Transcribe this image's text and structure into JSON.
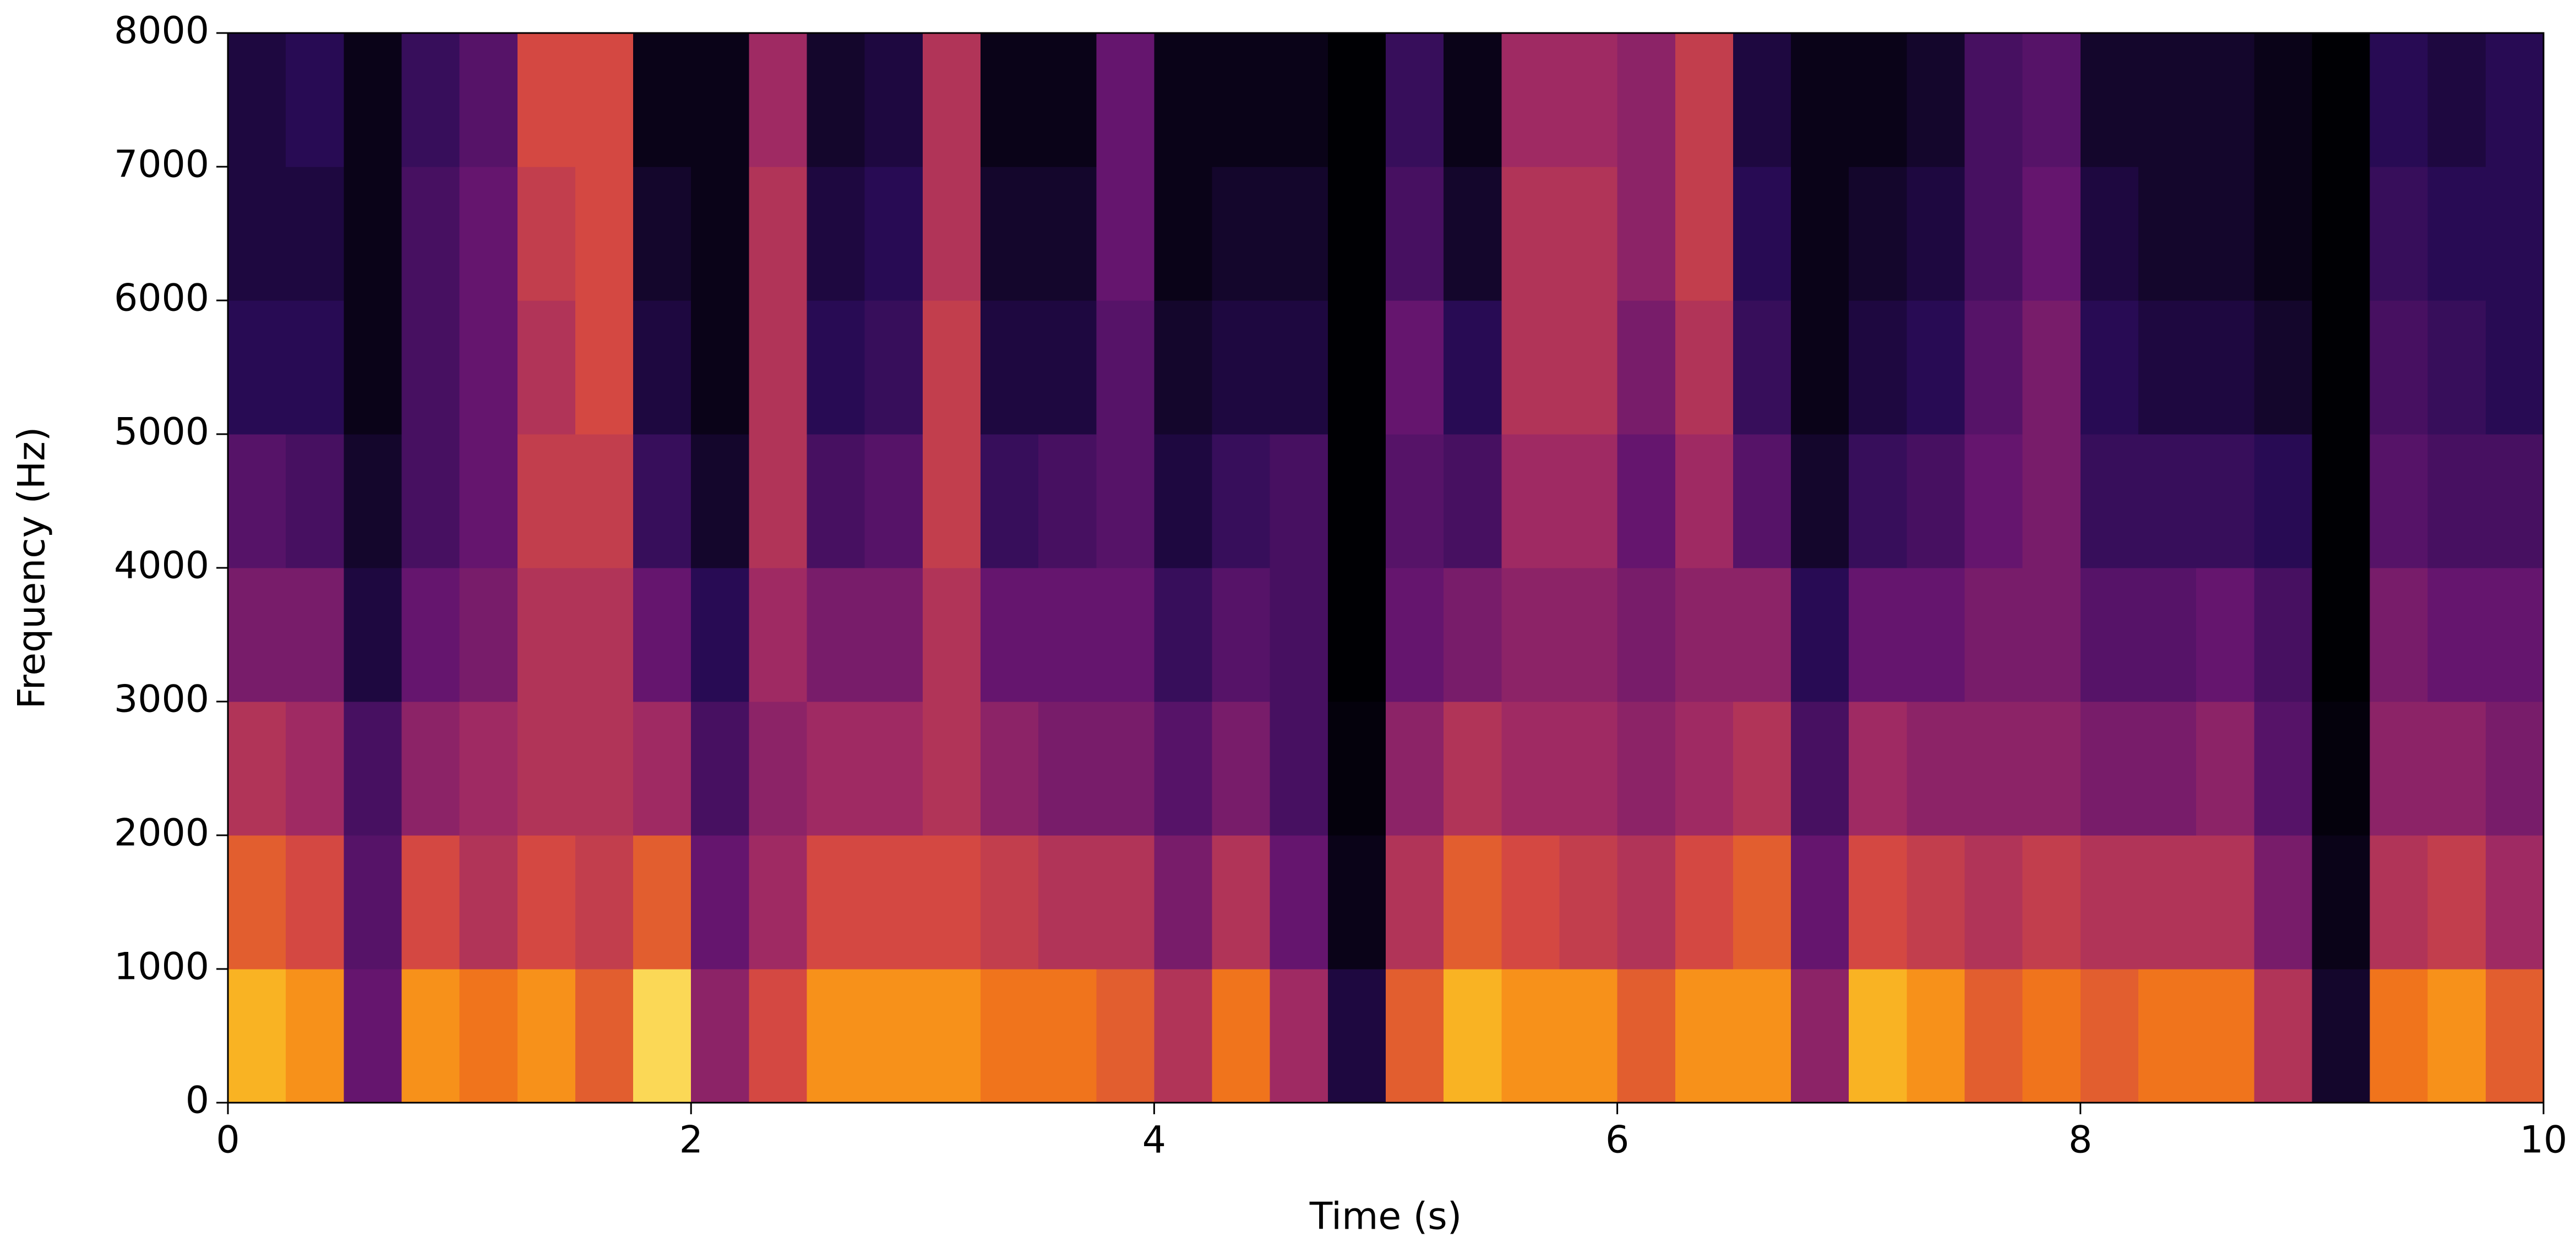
{
  "chart_data": {
    "type": "spectrogram",
    "xlabel": "Time (s)",
    "ylabel": "Frequency (Hz)",
    "colormap": "inferno",
    "zlim": [
      0,
      1
    ],
    "xlim": [
      0,
      10
    ],
    "ylim": [
      0,
      8000
    ],
    "xticks": [
      0,
      2,
      4,
      6,
      8,
      10
    ],
    "yticks": [
      0,
      1000,
      2000,
      3000,
      4000,
      5000,
      6000,
      7000,
      8000
    ],
    "xbins": [
      0,
      0.25,
      0.5,
      0.75,
      1,
      1.25,
      1.5,
      1.75,
      2,
      2.25,
      2.5,
      2.75,
      3,
      3.25,
      3.5,
      3.75,
      4,
      4.25,
      4.5,
      4.75,
      5,
      5.25,
      5.5,
      5.75,
      6,
      6.25,
      6.5,
      6.75,
      7,
      7.25,
      7.5,
      7.75,
      8,
      8.25,
      8.5,
      8.75,
      9,
      9.25,
      9.5,
      9.75,
      10
    ],
    "ybins": [
      0,
      1000,
      2000,
      3000,
      4000,
      5000,
      6000,
      7000,
      8000
    ],
    "z": [
      [
        0.9,
        0.85,
        0.4,
        0.85,
        0.8,
        0.85,
        0.75,
        0.95,
        0.5,
        0.7,
        0.85,
        0.85,
        0.85,
        0.8,
        0.8,
        0.75,
        0.6,
        0.8,
        0.55,
        0.15,
        0.75,
        0.9,
        0.85,
        0.85,
        0.75,
        0.85,
        0.85,
        0.5,
        0.9,
        0.85,
        0.75,
        0.8,
        0.75,
        0.8,
        0.8,
        0.6,
        0.1,
        0.8,
        0.85,
        0.75
      ],
      [
        0.75,
        0.7,
        0.35,
        0.7,
        0.6,
        0.7,
        0.65,
        0.75,
        0.4,
        0.55,
        0.7,
        0.7,
        0.7,
        0.65,
        0.6,
        0.6,
        0.45,
        0.6,
        0.4,
        0.05,
        0.6,
        0.75,
        0.7,
        0.65,
        0.6,
        0.7,
        0.75,
        0.4,
        0.7,
        0.65,
        0.6,
        0.65,
        0.6,
        0.6,
        0.6,
        0.45,
        0.05,
        0.6,
        0.65,
        0.55
      ],
      [
        0.6,
        0.55,
        0.3,
        0.5,
        0.55,
        0.6,
        0.6,
        0.55,
        0.3,
        0.5,
        0.55,
        0.55,
        0.6,
        0.5,
        0.45,
        0.45,
        0.35,
        0.45,
        0.3,
        0.02,
        0.5,
        0.6,
        0.55,
        0.55,
        0.5,
        0.55,
        0.6,
        0.3,
        0.55,
        0.5,
        0.5,
        0.5,
        0.45,
        0.45,
        0.5,
        0.35,
        0.02,
        0.5,
        0.5,
        0.45
      ],
      [
        0.45,
        0.45,
        0.15,
        0.4,
        0.45,
        0.6,
        0.6,
        0.4,
        0.2,
        0.55,
        0.45,
        0.45,
        0.6,
        0.4,
        0.4,
        0.4,
        0.25,
        0.35,
        0.3,
        0,
        0.4,
        0.45,
        0.5,
        0.5,
        0.45,
        0.5,
        0.5,
        0.2,
        0.4,
        0.4,
        0.45,
        0.45,
        0.35,
        0.35,
        0.4,
        0.3,
        0,
        0.45,
        0.4,
        0.4
      ],
      [
        0.35,
        0.3,
        0.1,
        0.3,
        0.4,
        0.65,
        0.65,
        0.25,
        0.1,
        0.6,
        0.3,
        0.35,
        0.65,
        0.25,
        0.3,
        0.35,
        0.15,
        0.25,
        0.3,
        0,
        0.35,
        0.3,
        0.55,
        0.55,
        0.4,
        0.55,
        0.35,
        0.1,
        0.25,
        0.3,
        0.4,
        0.45,
        0.25,
        0.25,
        0.25,
        0.2,
        0,
        0.35,
        0.3,
        0.3
      ],
      [
        0.2,
        0.2,
        0.05,
        0.3,
        0.4,
        0.6,
        0.7,
        0.15,
        0.05,
        0.6,
        0.2,
        0.25,
        0.65,
        0.15,
        0.15,
        0.35,
        0.1,
        0.15,
        0.15,
        0,
        0.4,
        0.2,
        0.6,
        0.6,
        0.45,
        0.6,
        0.25,
        0.05,
        0.15,
        0.2,
        0.35,
        0.45,
        0.2,
        0.15,
        0.15,
        0.1,
        0,
        0.3,
        0.25,
        0.2
      ],
      [
        0.15,
        0.15,
        0.05,
        0.3,
        0.4,
        0.65,
        0.7,
        0.1,
        0.05,
        0.6,
        0.15,
        0.2,
        0.6,
        0.1,
        0.1,
        0.4,
        0.05,
        0.1,
        0.1,
        0,
        0.3,
        0.1,
        0.6,
        0.6,
        0.5,
        0.65,
        0.2,
        0.05,
        0.1,
        0.15,
        0.3,
        0.4,
        0.15,
        0.1,
        0.1,
        0.05,
        0,
        0.25,
        0.2,
        0.2
      ],
      [
        0.15,
        0.2,
        0.05,
        0.25,
        0.35,
        0.7,
        0.7,
        0.05,
        0.05,
        0.55,
        0.1,
        0.15,
        0.6,
        0.05,
        0.05,
        0.4,
        0.05,
        0.05,
        0.05,
        0,
        0.25,
        0.05,
        0.55,
        0.55,
        0.5,
        0.65,
        0.15,
        0.05,
        0.05,
        0.1,
        0.3,
        0.35,
        0.1,
        0.1,
        0.1,
        0.05,
        0,
        0.2,
        0.15,
        0.2
      ]
    ]
  }
}
